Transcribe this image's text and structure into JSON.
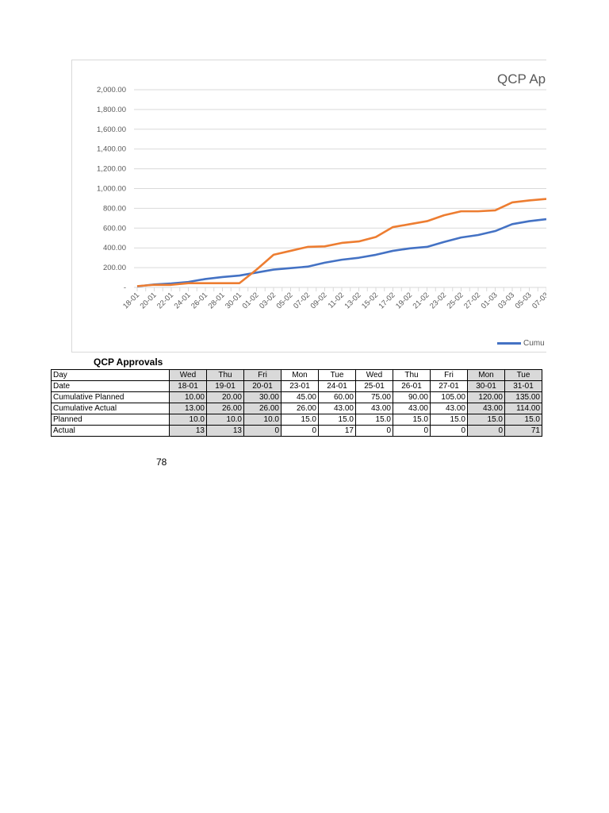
{
  "chart_data": {
    "type": "line",
    "title": "QCP App",
    "ylim": [
      0,
      2000
    ],
    "yticks": [
      "-",
      "200.00",
      "400.00",
      "600.00",
      "800.00",
      "1,000.00",
      "1,200.00",
      "1,400.00",
      "1,600.00",
      "1,800.00",
      "2,000.00"
    ],
    "ytick_values": [
      0,
      200,
      400,
      600,
      800,
      1000,
      1200,
      1400,
      1600,
      1800,
      2000
    ],
    "grid": true,
    "legend_position": "bottom",
    "legend_visible_text": "Cumu",
    "x": [
      "18-01",
      "20-01",
      "22-01",
      "24-01",
      "26-01",
      "28-01",
      "30-01",
      "01-02",
      "03-02",
      "05-02",
      "07-02",
      "09-02",
      "11-02",
      "13-02",
      "15-02",
      "17-02",
      "19-02",
      "21-02",
      "23-02",
      "25-02",
      "27-02",
      "01-03",
      "03-03",
      "05-03",
      "07-03"
    ],
    "series": [
      {
        "color": "#4472c4",
        "values": [
          10,
          30,
          40,
          55,
          85,
          105,
          120,
          150,
          180,
          195,
          210,
          250,
          280,
          300,
          330,
          370,
          395,
          410,
          460,
          505,
          530,
          570,
          640,
          670,
          690
        ]
      },
      {
        "color": "#ed7d31",
        "values": [
          13,
          26,
          26,
          43,
          43,
          43,
          43,
          180,
          330,
          370,
          410,
          415,
          450,
          465,
          510,
          610,
          640,
          670,
          730,
          770,
          770,
          780,
          860,
          880,
          895
        ]
      }
    ]
  },
  "table": {
    "title": "QCP Approvals",
    "shaded_columns": [
      0,
      1,
      2,
      8,
      9
    ],
    "rows": [
      {
        "label": "Day",
        "align": "c",
        "cells": [
          "Wed",
          "Thu",
          "Fri",
          "Mon",
          "Tue",
          "Wed",
          "Thu",
          "Fri",
          "Mon",
          "Tue"
        ]
      },
      {
        "label": "Date",
        "align": "c",
        "cells": [
          "18-01",
          "19-01",
          "20-01",
          "23-01",
          "24-01",
          "25-01",
          "26-01",
          "27-01",
          "30-01",
          "31-01"
        ]
      },
      {
        "label": "Cumulative Planned",
        "align": "r",
        "cells": [
          "10.00",
          "20.00",
          "30.00",
          "45.00",
          "60.00",
          "75.00",
          "90.00",
          "105.00",
          "120.00",
          "135.00"
        ]
      },
      {
        "label": "Cumulative Actual",
        "align": "r",
        "cells": [
          "13.00",
          "26.00",
          "26.00",
          "26.00",
          "43.00",
          "43.00",
          "43.00",
          "43.00",
          "43.00",
          "114.00"
        ]
      },
      {
        "label": "Planned",
        "align": "r",
        "cells": [
          "10.0",
          "10.0",
          "10.0",
          "15.0",
          "15.0",
          "15.0",
          "15.0",
          "15.0",
          "15.0",
          "15.0"
        ]
      },
      {
        "label": "Actual",
        "align": "r",
        "cells": [
          "13",
          "13",
          "0",
          "0",
          "17",
          "0",
          "0",
          "0",
          "0",
          "71"
        ]
      }
    ]
  },
  "page_number": "78"
}
